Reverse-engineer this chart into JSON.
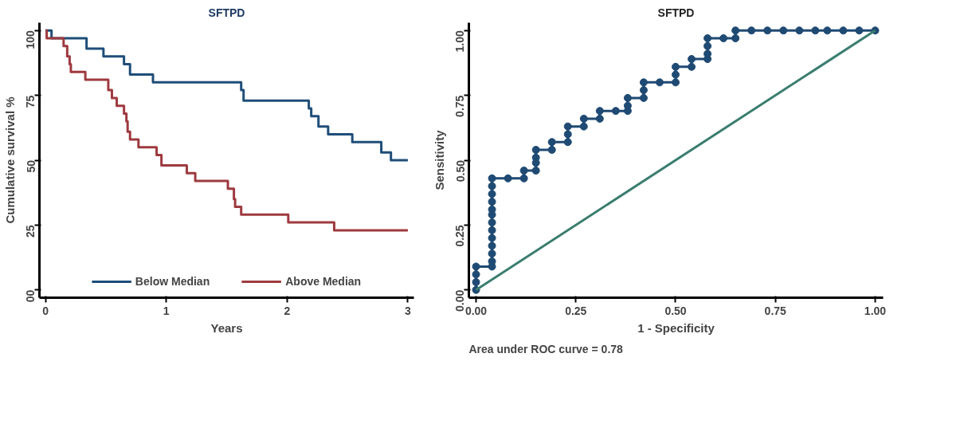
{
  "chart_data": [
    {
      "type": "step",
      "title": "SFTPD",
      "xlabel": "Years",
      "ylabel": "Cumulative survival %",
      "xlim": [
        -0.05,
        3.05
      ],
      "ylim": [
        -3,
        103
      ],
      "xticks": [
        0,
        1,
        2,
        3
      ],
      "yticks": [
        {
          "value": 0,
          "label": "00"
        },
        25,
        50,
        75,
        100
      ],
      "grid": false,
      "legend": "bottom",
      "series": [
        {
          "name": "Below Median",
          "color": "#1f4e79",
          "x": [
            0,
            0.05,
            0.34,
            0.48,
            0.65,
            0.7,
            0.89,
            1.62,
            1.64,
            2.18,
            2.2,
            2.26,
            2.34,
            2.54,
            2.78,
            2.86,
            3.0
          ],
          "values": [
            100,
            97,
            93,
            90,
            87,
            83,
            80,
            77,
            73,
            70,
            67,
            63,
            60,
            57,
            53,
            50,
            50
          ]
        },
        {
          "name": "Above Median",
          "color": "#9e3a3f",
          "x": [
            0,
            0.01,
            0.15,
            0.18,
            0.2,
            0.21,
            0.33,
            0.52,
            0.55,
            0.59,
            0.65,
            0.67,
            0.68,
            0.7,
            0.77,
            0.92,
            0.96,
            1.17,
            1.24,
            1.51,
            1.56,
            1.57,
            1.62,
            2.01,
            2.39,
            3.0
          ],
          "values": [
            100,
            97,
            94,
            90,
            87,
            84,
            81,
            77,
            74,
            71,
            68,
            65,
            61,
            58,
            55,
            52,
            48,
            45,
            42,
            39,
            35,
            32,
            29,
            26,
            23,
            23
          ]
        }
      ]
    },
    {
      "type": "line",
      "title": "SFTPD",
      "xlabel": "1 - Specificity",
      "ylabel": "Sensitivity",
      "xlim": [
        -0.018,
        1.02
      ],
      "ylim": [
        -0.03,
        1.03
      ],
      "xticks": [
        {
          "value": 0,
          "label": "0.00"
        },
        {
          "value": 0.25,
          "label": "0.25"
        },
        {
          "value": 0.5,
          "label": "0.50"
        },
        {
          "value": 0.75,
          "label": "0.75"
        },
        {
          "value": 1,
          "label": "1.00"
        }
      ],
      "yticks": [
        {
          "value": 0,
          "label": "0.00"
        },
        {
          "value": 0.25,
          "label": "0.25"
        },
        {
          "value": 0.5,
          "label": "0.50"
        },
        {
          "value": 0.75,
          "label": "0.75"
        },
        {
          "value": 1,
          "label": "1.00"
        }
      ],
      "grid": false,
      "annotations": [
        "Area under ROC curve = 0.78"
      ],
      "series": [
        {
          "color": "#1f4a73",
          "marker": "circle",
          "x": [
            0,
            0,
            0,
            0,
            0.04,
            0.04,
            0.04,
            0.04,
            0.04,
            0.04,
            0.04,
            0.04,
            0.04,
            0.04,
            0.04,
            0.04,
            0.04,
            0.08,
            0.12,
            0.12,
            0.15,
            0.15,
            0.15,
            0.15,
            0.19,
            0.19,
            0.23,
            0.23,
            0.23,
            0.27,
            0.27,
            0.31,
            0.31,
            0.35,
            0.38,
            0.38,
            0.38,
            0.42,
            0.42,
            0.42,
            0.46,
            0.5,
            0.5,
            0.5,
            0.54,
            0.54,
            0.58,
            0.58,
            0.58,
            0.58,
            0.62,
            0.65,
            0.65,
            0.69,
            0.73,
            0.77,
            0.81,
            0.85,
            0.88,
            0.92,
            0.96,
            1.0
          ],
          "values": [
            0,
            0.03,
            0.06,
            0.09,
            0.09,
            0.11,
            0.14,
            0.17,
            0.2,
            0.23,
            0.26,
            0.29,
            0.31,
            0.34,
            0.37,
            0.4,
            0.43,
            0.43,
            0.43,
            0.46,
            0.46,
            0.49,
            0.51,
            0.54,
            0.54,
            0.57,
            0.57,
            0.6,
            0.63,
            0.63,
            0.66,
            0.66,
            0.69,
            0.69,
            0.69,
            0.71,
            0.74,
            0.74,
            0.77,
            0.8,
            0.8,
            0.8,
            0.83,
            0.86,
            0.86,
            0.89,
            0.89,
            0.91,
            0.94,
            0.97,
            0.97,
            0.97,
            1.0,
            1.0,
            1.0,
            1.0,
            1.0,
            1.0,
            1.0,
            1.0,
            1.0,
            1.0
          ]
        },
        {
          "color": "#3a7d6e",
          "marker": "none",
          "x": [
            0,
            1
          ],
          "values": [
            0,
            1
          ]
        }
      ]
    }
  ]
}
